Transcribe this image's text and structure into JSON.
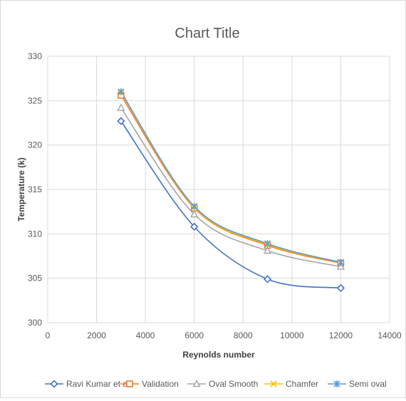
{
  "chart_data": {
    "type": "line",
    "title": "Chart Title",
    "xlabel": "Reynolds number",
    "ylabel": "Temperature (k)",
    "xlim": [
      0,
      14000
    ],
    "ylim": [
      300,
      330
    ],
    "xticks": [
      0,
      2000,
      4000,
      6000,
      8000,
      10000,
      12000,
      14000
    ],
    "yticks": [
      300,
      305,
      310,
      315,
      320,
      325,
      330
    ],
    "grid": true,
    "legend_position": "bottom",
    "series": [
      {
        "name": "Ravi Kumar et al",
        "color": "#4472c4",
        "marker": "diamond",
        "x": [
          3000,
          6000,
          9000,
          12000
        ],
        "y": [
          322.7,
          310.8,
          304.9,
          303.9
        ]
      },
      {
        "name": "Validation",
        "color": "#ed7d31",
        "marker": "square",
        "x": [
          3000,
          6000,
          9000,
          12000
        ],
        "y": [
          325.6,
          312.9,
          308.7,
          306.7
        ]
      },
      {
        "name": "Oval Smooth",
        "color": "#a5a5a5",
        "marker": "triangle",
        "x": [
          3000,
          6000,
          9000,
          12000
        ],
        "y": [
          324.2,
          312.2,
          308.1,
          306.3
        ]
      },
      {
        "name": "Chamfer",
        "color": "#ffc000",
        "marker": "x",
        "x": [
          3000,
          6000,
          9000,
          12000
        ],
        "y": [
          325.9,
          313.0,
          308.8,
          306.8
        ]
      },
      {
        "name": "Semi oval",
        "color": "#5b9bd5",
        "marker": "star",
        "x": [
          3000,
          6000,
          9000,
          12000
        ],
        "y": [
          326.0,
          313.1,
          308.9,
          306.8
        ]
      }
    ]
  }
}
